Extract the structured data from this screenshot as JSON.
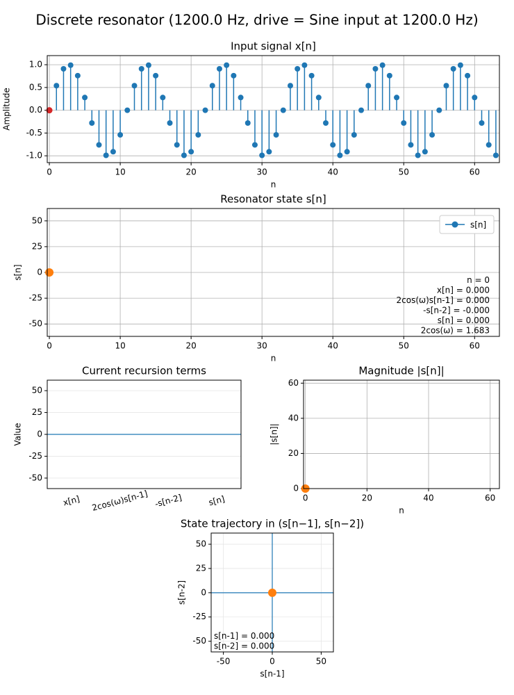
{
  "title": "Discrete resonator (1200.0 Hz, drive = Sine input at 1200.0 Hz)",
  "chart_data": [
    {
      "type": "stem",
      "title": "Input signal x[n]",
      "xlabel": "n",
      "ylabel": "Amplitude",
      "color": "#1f77b4",
      "x": [
        0,
        1,
        2,
        3,
        4,
        5,
        6,
        7,
        8,
        9,
        10,
        11,
        12,
        13,
        14,
        15,
        16,
        17,
        18,
        19,
        20,
        21,
        22,
        23,
        24,
        25,
        26,
        27,
        28,
        29,
        30,
        31,
        32,
        33,
        34,
        35,
        36,
        37,
        38,
        39,
        40,
        41,
        42,
        43,
        44,
        45,
        46,
        47,
        48,
        49,
        50,
        51,
        52,
        53,
        54,
        55,
        56,
        57,
        58,
        59,
        60,
        61,
        62,
        63
      ],
      "values": [
        0,
        0.54,
        0.91,
        0.99,
        0.76,
        0.28,
        -0.28,
        -0.76,
        -0.99,
        -0.91,
        -0.54,
        0,
        0.54,
        0.91,
        0.99,
        0.76,
        0.28,
        -0.28,
        -0.76,
        -0.99,
        -0.91,
        -0.54,
        0,
        0.54,
        0.91,
        0.99,
        0.76,
        0.28,
        -0.28,
        -0.76,
        -0.99,
        -0.91,
        -0.54,
        0,
        0.54,
        0.91,
        0.99,
        0.76,
        0.28,
        -0.28,
        -0.76,
        -0.99,
        -0.91,
        -0.54,
        0,
        0.54,
        0.91,
        0.99,
        0.76,
        0.28,
        -0.28,
        -0.76,
        -0.99,
        -0.91,
        -0.54,
        0,
        0.54,
        0.91,
        0.99,
        0.76,
        0.28,
        -0.28,
        -0.76,
        -0.99
      ],
      "current_point": {
        "x": 0,
        "y": 0,
        "color": "#d62728"
      },
      "xlim": [
        -0.3,
        63.5
      ],
      "xticks": [
        0,
        10,
        20,
        30,
        40,
        50,
        60
      ],
      "ylim": [
        -1.15,
        1.2
      ],
      "yticks": [
        {
          "value": -1,
          "label": "-1.0"
        },
        {
          "value": -0.5,
          "label": "-0.5"
        },
        {
          "value": 0,
          "label": "0.0"
        },
        {
          "value": 0.5,
          "label": "0.5"
        },
        {
          "value": 1,
          "label": "1.0"
        }
      ],
      "grid": true,
      "grid_color": "#b0b0b0"
    },
    {
      "type": "line",
      "title": "Resonator state s[n]",
      "xlabel": "n",
      "ylabel": "s[n]",
      "series": [
        {
          "name": "s[n]",
          "color": "#1f77b4",
          "x": [
            0
          ],
          "values": [
            0
          ]
        }
      ],
      "current_point": {
        "x": 0,
        "y": 0,
        "color": "#ff7f0e"
      },
      "legend": "upper right",
      "annotations": [
        "n = 0",
        "x[n] = 0.000",
        "2cos(ω)s[n-1] = 0.000",
        "-s[n-2] = -0.000",
        "s[n] = 0.000",
        "2cos(ω) = 1.683"
      ],
      "annotation_loc": "lower right",
      "xlim": [
        -0.3,
        63.5
      ],
      "xticks": [
        0,
        10,
        20,
        30,
        40,
        50,
        60
      ],
      "ylim": [
        -62,
        62
      ],
      "yticks": [
        -50,
        -25,
        0,
        25,
        50
      ],
      "grid": true,
      "grid_color": "#b0b0b0"
    },
    {
      "type": "bar",
      "title": "Current recursion terms",
      "ylabel": "Value",
      "color": "#1f77b4",
      "categories": [
        "x[n]",
        "2cos(ω)s[n-1]",
        "-s[n-2]",
        "s[n]"
      ],
      "values": [
        0,
        0,
        0,
        0
      ],
      "hlines": [
        0
      ],
      "ylim": [
        -62,
        62
      ],
      "yticks": [
        -50,
        -25,
        0,
        25,
        50
      ],
      "grid": true,
      "grid_color": "#e6e6e6"
    },
    {
      "type": "line",
      "title": "Magnitude |s[n]|",
      "xlabel": "n",
      "ylabel": "|s[n]|",
      "series": [
        {
          "name": "|s[n]|",
          "color": "#1f77b4",
          "x": [
            0
          ],
          "values": [
            0
          ]
        }
      ],
      "current_point": {
        "x": 0,
        "y": 0,
        "color": "#ff7f0e"
      },
      "xlim": [
        -0.6,
        63
      ],
      "xticks": [
        0,
        20,
        40,
        60
      ],
      "ylim": [
        0,
        61.7
      ],
      "yticks": [
        0,
        20,
        40,
        60
      ],
      "grid": true,
      "grid_color": "#b0b0b0"
    },
    {
      "type": "line",
      "title": "State trajectory in (s[n−1], s[n−2])",
      "xlabel": "s[n-1]",
      "ylabel": "s[n-2]",
      "series": [
        {
          "name": "trajectory",
          "color": "#1f77b4",
          "x": [
            0
          ],
          "values": [
            0
          ]
        }
      ],
      "current_point": {
        "x": 0,
        "y": 0,
        "color": "#ff7f0e"
      },
      "hlines": [
        0
      ],
      "vlines": [
        0
      ],
      "annotations": [
        "s[n-1] = 0.000",
        "s[n-2] = 0.000"
      ],
      "annotation_loc": "lower left",
      "xlim": [
        -62.5,
        62.5
      ],
      "xticks": [
        -50,
        0,
        50
      ],
      "ylim": [
        -61,
        61.5
      ],
      "yticks": [
        -50,
        -25,
        0,
        25,
        50
      ],
      "grid": true,
      "grid_color": "#e6e6e6"
    }
  ]
}
